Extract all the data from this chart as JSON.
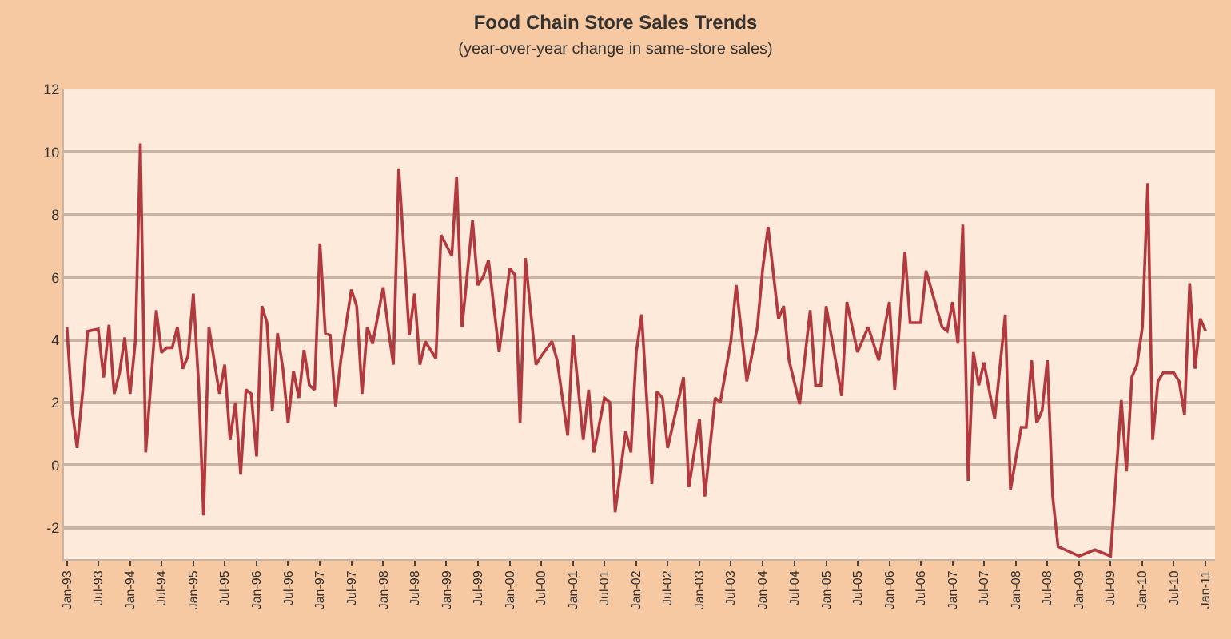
{
  "chart_data": {
    "type": "line",
    "title": "Food Chain Store Sales Trends",
    "subtitle": "(year-over-year change in same-store sales)",
    "x": [
      "1993-01",
      "1993-02",
      "1993-03",
      "1993-04",
      "1993-05",
      "1993-07",
      "1993-08",
      "1993-09",
      "1993-10",
      "1993-11",
      "1993-12",
      "1994-01",
      "1994-02",
      "1994-03",
      "1994-04",
      "1994-06",
      "1994-07",
      "1994-08",
      "1994-09",
      "1994-10",
      "1994-11",
      "1994-12",
      "1995-01",
      "1995-02",
      "1995-03",
      "1995-04",
      "1995-05",
      "1995-06",
      "1995-07",
      "1995-08",
      "1995-09",
      "1995-10",
      "1995-11",
      "1995-12",
      "1996-01",
      "1996-02",
      "1996-03",
      "1996-04",
      "1996-05",
      "1996-06",
      "1996-07",
      "1996-08",
      "1996-09",
      "1996-10",
      "1996-11",
      "1996-12",
      "1997-01",
      "1997-02",
      "1997-03",
      "1997-04",
      "1997-05",
      "1997-07",
      "1997-08",
      "1997-09",
      "1997-10",
      "1997-11",
      "1998-01",
      "1998-02",
      "1998-03",
      "1998-04",
      "1998-06",
      "1998-07",
      "1998-08",
      "1998-09",
      "1998-11",
      "1998-12",
      "1999-02",
      "1999-03",
      "1999-04",
      "1999-06",
      "1999-07",
      "1999-08",
      "1999-09",
      "1999-11",
      "2000-01",
      "2000-02",
      "2000-03",
      "2000-04",
      "2000-06",
      "2000-07",
      "2000-09",
      "2000-10",
      "2000-12",
      "2001-01",
      "2001-03",
      "2001-04",
      "2001-05",
      "2001-07",
      "2001-08",
      "2001-09",
      "2001-11",
      "2001-12",
      "2002-01",
      "2002-02",
      "2002-04",
      "2002-05",
      "2002-06",
      "2002-07",
      "2002-10",
      "2002-11",
      "2003-01",
      "2003-02",
      "2003-04",
      "2003-05",
      "2003-07",
      "2003-08",
      "2003-10",
      "2003-12",
      "2004-01",
      "2004-02",
      "2004-04",
      "2004-05",
      "2004-06",
      "2004-08",
      "2004-10",
      "2004-11",
      "2004-12",
      "2005-01",
      "2005-04",
      "2005-05",
      "2005-07",
      "2005-09",
      "2005-11",
      "2006-01",
      "2006-02",
      "2006-04",
      "2006-05",
      "2006-07",
      "2006-08",
      "2006-11",
      "2006-12",
      "2007-01",
      "2007-02",
      "2007-03",
      "2007-04",
      "2007-05",
      "2007-06",
      "2007-07",
      "2007-09",
      "2007-11",
      "2007-12",
      "2008-02",
      "2008-03",
      "2008-04",
      "2008-05",
      "2008-06",
      "2008-07",
      "2008-08",
      "2008-09",
      "2009-01",
      "2009-04",
      "2009-07",
      "2009-09",
      "2009-10",
      "2009-11",
      "2009-12",
      "2010-01",
      "2010-02",
      "2010-03",
      "2010-04",
      "2010-05",
      "2010-07",
      "2010-08",
      "2010-09",
      "2010-10",
      "2010-11",
      "2010-12",
      "2011-01"
    ],
    "series": [
      {
        "color": "#b23a3e",
        "values": [
          4.41,
          1.75,
          0.55,
          2.28,
          4.28,
          4.35,
          2.8,
          4.48,
          2.28,
          2.95,
          4.08,
          2.28,
          4.0,
          10.28,
          0.41,
          4.95,
          3.6,
          3.75,
          3.75,
          4.41,
          3.08,
          3.48,
          5.48,
          2.55,
          -1.6,
          4.41,
          3.35,
          2.28,
          3.21,
          0.81,
          2.0,
          -0.3,
          2.41,
          2.28,
          0.28,
          5.08,
          4.55,
          1.75,
          4.21,
          3.08,
          1.35,
          3.01,
          2.15,
          3.68,
          2.55,
          2.41,
          7.08,
          4.21,
          4.15,
          1.88,
          3.35,
          5.61,
          5.08,
          2.28,
          4.41,
          3.88,
          5.68,
          4.28,
          3.21,
          9.48,
          4.15,
          5.48,
          3.21,
          3.95,
          3.41,
          7.35,
          6.68,
          9.21,
          4.41,
          7.81,
          5.75,
          6.01,
          6.55,
          3.61,
          6.28,
          6.08,
          1.35,
          6.61,
          3.21,
          3.48,
          3.95,
          3.35,
          0.95,
          4.15,
          0.81,
          2.41,
          0.41,
          2.15,
          2.01,
          -1.5,
          1.08,
          0.41,
          3.61,
          4.81,
          -0.6,
          2.35,
          2.15,
          0.55,
          2.81,
          -0.7,
          1.48,
          -1.0,
          2.15,
          2.01,
          3.95,
          5.75,
          2.68,
          4.41,
          6.28,
          7.61,
          4.68,
          5.08,
          3.35,
          1.95,
          4.95,
          2.55,
          2.55,
          5.08,
          2.21,
          5.21,
          3.61,
          4.41,
          3.35,
          5.21,
          2.41,
          6.81,
          4.55,
          4.55,
          6.21,
          4.41,
          4.28,
          5.21,
          3.88,
          7.68,
          -0.5,
          3.61,
          2.55,
          3.28,
          1.48,
          4.81,
          -0.8,
          1.21,
          1.21,
          3.35,
          1.35,
          1.75,
          3.35,
          -1.0,
          -2.6,
          -2.9,
          -2.7,
          -2.9,
          2.08,
          -0.2,
          2.81,
          3.21,
          4.41,
          9.01,
          0.81,
          2.68,
          2.95,
          2.95,
          2.68,
          1.61,
          5.81,
          3.08,
          4.68,
          4.28
        ]
      }
    ],
    "xlim": [
      "1992-12-15",
      "2011-02-24"
    ],
    "xticks": [
      {
        "value": "1993-01",
        "label": "Jan-93"
      },
      {
        "value": "1993-07",
        "label": "Jul-93"
      },
      {
        "value": "1994-01",
        "label": "Jan-94"
      },
      {
        "value": "1994-07",
        "label": "Jul-94"
      },
      {
        "value": "1995-01",
        "label": "Jan-95"
      },
      {
        "value": "1995-07",
        "label": "Jul-95"
      },
      {
        "value": "1996-01",
        "label": "Jan-96"
      },
      {
        "value": "1996-07",
        "label": "Jul-96"
      },
      {
        "value": "1997-01",
        "label": "Jan-97"
      },
      {
        "value": "1997-07",
        "label": "Jul-97"
      },
      {
        "value": "1998-01",
        "label": "Jan-98"
      },
      {
        "value": "1998-07",
        "label": "Jul-98"
      },
      {
        "value": "1999-01",
        "label": "Jan-99"
      },
      {
        "value": "1999-07",
        "label": "Jul-99"
      },
      {
        "value": "2000-01",
        "label": "Jan-00"
      },
      {
        "value": "2000-07",
        "label": "Jul-00"
      },
      {
        "value": "2001-01",
        "label": "Jan-01"
      },
      {
        "value": "2001-07",
        "label": "Jul-01"
      },
      {
        "value": "2002-01",
        "label": "Jan-02"
      },
      {
        "value": "2002-07",
        "label": "Jul-02"
      },
      {
        "value": "2003-01",
        "label": "Jan-03"
      },
      {
        "value": "2003-07",
        "label": "Jul-03"
      },
      {
        "value": "2004-01",
        "label": "Jan-04"
      },
      {
        "value": "2004-07",
        "label": "Jul-04"
      },
      {
        "value": "2005-01",
        "label": "Jan-05"
      },
      {
        "value": "2005-07",
        "label": "Jul-05"
      },
      {
        "value": "2006-01",
        "label": "Jan-06"
      },
      {
        "value": "2006-07",
        "label": "Jul-06"
      },
      {
        "value": "2007-01",
        "label": "Jan-07"
      },
      {
        "value": "2007-07",
        "label": "Jul-07"
      },
      {
        "value": "2008-01",
        "label": "Jan-08"
      },
      {
        "value": "2008-07",
        "label": "Jul-08"
      },
      {
        "value": "2009-01",
        "label": "Jan-09"
      },
      {
        "value": "2009-07",
        "label": "Jul-09"
      },
      {
        "value": "2010-01",
        "label": "Jan-10"
      },
      {
        "value": "2010-07",
        "label": "Jul-10"
      },
      {
        "value": "2011-01",
        "label": "Jan-11"
      }
    ],
    "ylim": [
      -3,
      12
    ],
    "yticks": [
      -2,
      0,
      2,
      4,
      6,
      8,
      10,
      12
    ],
    "grid": "y",
    "marker": "none",
    "line_style": "solid"
  }
}
